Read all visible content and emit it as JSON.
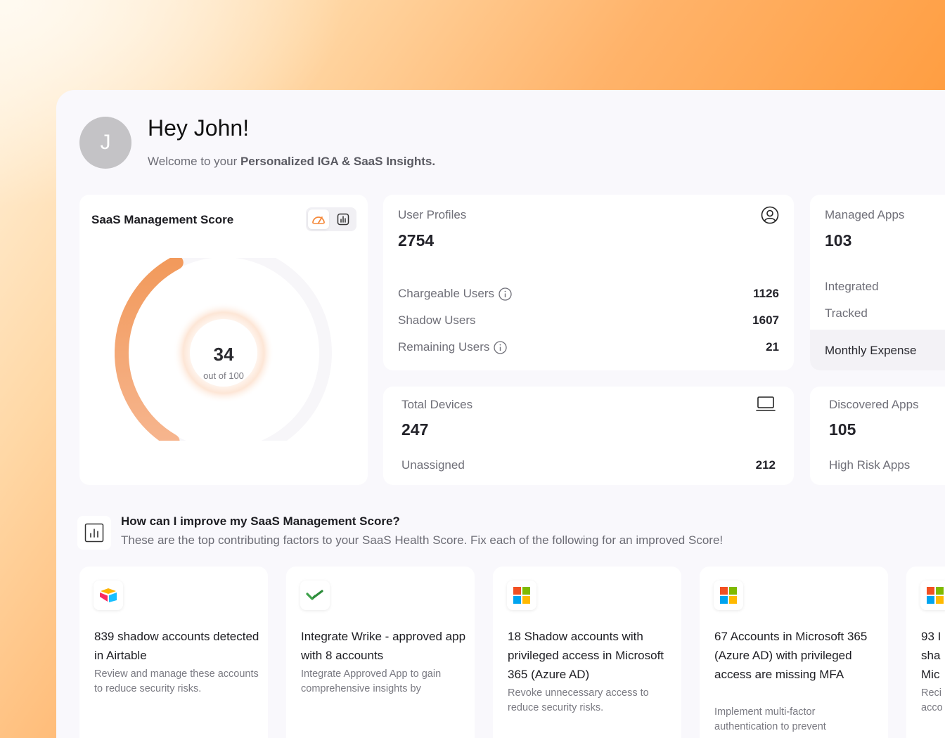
{
  "greeting": {
    "avatar_initial": "J",
    "title": "Hey John!",
    "sub_prefix": "Welcome to your ",
    "sub_bold": "Personalized IGA & SaaS Insights."
  },
  "score_card": {
    "title": "SaaS Management Score",
    "score": "34",
    "out_of": "out of 100",
    "score_fraction": 0.34,
    "view_toggle": [
      "gauge-icon",
      "chart-icon"
    ],
    "accent_color": "#f58a3c"
  },
  "user_profiles": {
    "label": "User Profiles",
    "value": "2754",
    "icon": "user-circle-icon",
    "rows": [
      {
        "label": "Chargeable Users",
        "value": "1126",
        "info": true
      },
      {
        "label": "Shadow Users",
        "value": "1607",
        "info": false
      },
      {
        "label": "Remaining Users",
        "value": "21",
        "info": true
      }
    ]
  },
  "managed_apps": {
    "label": "Managed Apps",
    "value": "103",
    "rows": [
      "Integrated",
      "Tracked"
    ],
    "footer": "Monthly Expense"
  },
  "total_devices": {
    "label": "Total Devices",
    "value": "247",
    "icon": "laptop-icon",
    "row_label": "Unassigned",
    "row_value": "212"
  },
  "discovered_apps": {
    "label": "Discovered Apps",
    "value": "105",
    "row_label": "High Risk Apps"
  },
  "improve": {
    "title": "How can I improve my SaaS Management Score?",
    "subtitle": "These are the top contributing factors to your SaaS Health Score. Fix each of the following for an improved Score!"
  },
  "factors": [
    {
      "app": "airtable-logo-icon",
      "title": "839 shadow accounts detected in Airtable",
      "desc": "Review and manage these accounts to reduce security risks."
    },
    {
      "app": "wrike-logo-icon",
      "title": "Integrate Wrike - approved app with 8 accounts",
      "desc": "Integrate Approved App to gain comprehensive insights by"
    },
    {
      "app": "microsoft-logo-icon",
      "title": "18 Shadow accounts with privileged access in Microsoft 365 (Azure AD)",
      "desc": "Revoke unnecessary access to reduce security risks."
    },
    {
      "app": "microsoft-logo-icon",
      "title": "67 Accounts in Microsoft 365 (Azure AD) with privileged access are missing MFA",
      "desc": "Implement multi-factor authentication to prevent"
    },
    {
      "app": "microsoft-logo-icon",
      "title": "93 I sha Mic",
      "desc": "Reci acco"
    }
  ]
}
